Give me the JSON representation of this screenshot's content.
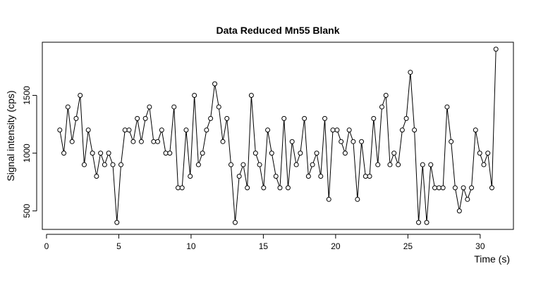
{
  "chart_data": {
    "type": "line",
    "title": "Data Reduced Mn55 Blank",
    "x_label": "Time (s)",
    "y_label": "Signal intensity (cps)",
    "x": [
      0.92,
      1.2,
      1.48,
      1.77,
      2.05,
      2.33,
      2.61,
      2.89,
      3.18,
      3.46,
      3.74,
      4.02,
      4.3,
      4.59,
      4.87,
      5.15,
      5.43,
      5.71,
      6.0,
      6.28,
      6.56,
      6.84,
      7.12,
      7.41,
      7.69,
      7.97,
      8.25,
      8.53,
      8.82,
      9.1,
      9.38,
      9.66,
      9.94,
      10.23,
      10.51,
      10.79,
      11.07,
      11.35,
      11.64,
      11.92,
      12.2,
      12.48,
      12.76,
      13.05,
      13.33,
      13.61,
      13.89,
      14.17,
      14.46,
      14.74,
      15.02,
      15.3,
      15.58,
      15.87,
      16.15,
      16.43,
      16.71,
      16.99,
      17.28,
      17.56,
      17.84,
      18.12,
      18.4,
      18.69,
      18.97,
      19.25,
      19.53,
      19.81,
      20.1,
      20.38,
      20.66,
      20.94,
      21.22,
      21.51,
      21.79,
      22.07,
      22.35,
      22.63,
      22.92,
      23.2,
      23.48,
      23.76,
      24.04,
      24.33,
      24.61,
      24.89,
      25.17,
      25.45,
      25.74,
      26.02,
      26.3,
      26.58,
      26.86,
      27.15,
      27.43,
      27.71,
      27.99,
      28.27,
      28.56,
      28.84,
      29.12,
      29.4,
      29.68,
      29.97,
      30.25,
      30.53,
      30.81,
      31.09
    ],
    "values": [
      1200,
      1000,
      1400,
      1100,
      1300,
      1500,
      900,
      1200,
      1000,
      800,
      1000,
      900,
      1000,
      900,
      400,
      900,
      1200,
      1200,
      1100,
      1300,
      1100,
      1300,
      1400,
      1100,
      1100,
      1200,
      1000,
      1000,
      1400,
      700,
      700,
      1200,
      800,
      1500,
      900,
      1000,
      1200,
      1300,
      1600,
      1400,
      1100,
      1300,
      900,
      400,
      800,
      900,
      700,
      1500,
      1000,
      900,
      700,
      1200,
      1000,
      800,
      700,
      1300,
      700,
      1100,
      900,
      1000,
      1300,
      800,
      900,
      1000,
      800,
      1300,
      600,
      1200,
      1200,
      1100,
      1000,
      1200,
      1100,
      600,
      1100,
      800,
      800,
      1300,
      900,
      1400,
      1500,
      900,
      1000,
      900,
      1200,
      1300,
      1700,
      1200,
      400,
      900,
      400,
      900,
      700,
      700,
      700,
      1400,
      1100,
      700,
      500,
      700,
      600,
      700,
      1200,
      1000,
      900,
      1000,
      700,
      1900
    ],
    "color": "#000000",
    "xlim": [
      -0.29,
      32.3
    ],
    "xticks": [
      0,
      5,
      10,
      15,
      20,
      25,
      30
    ],
    "ylim": [
      340,
      1960
    ],
    "yticks": [
      500,
      1000,
      1500
    ]
  }
}
